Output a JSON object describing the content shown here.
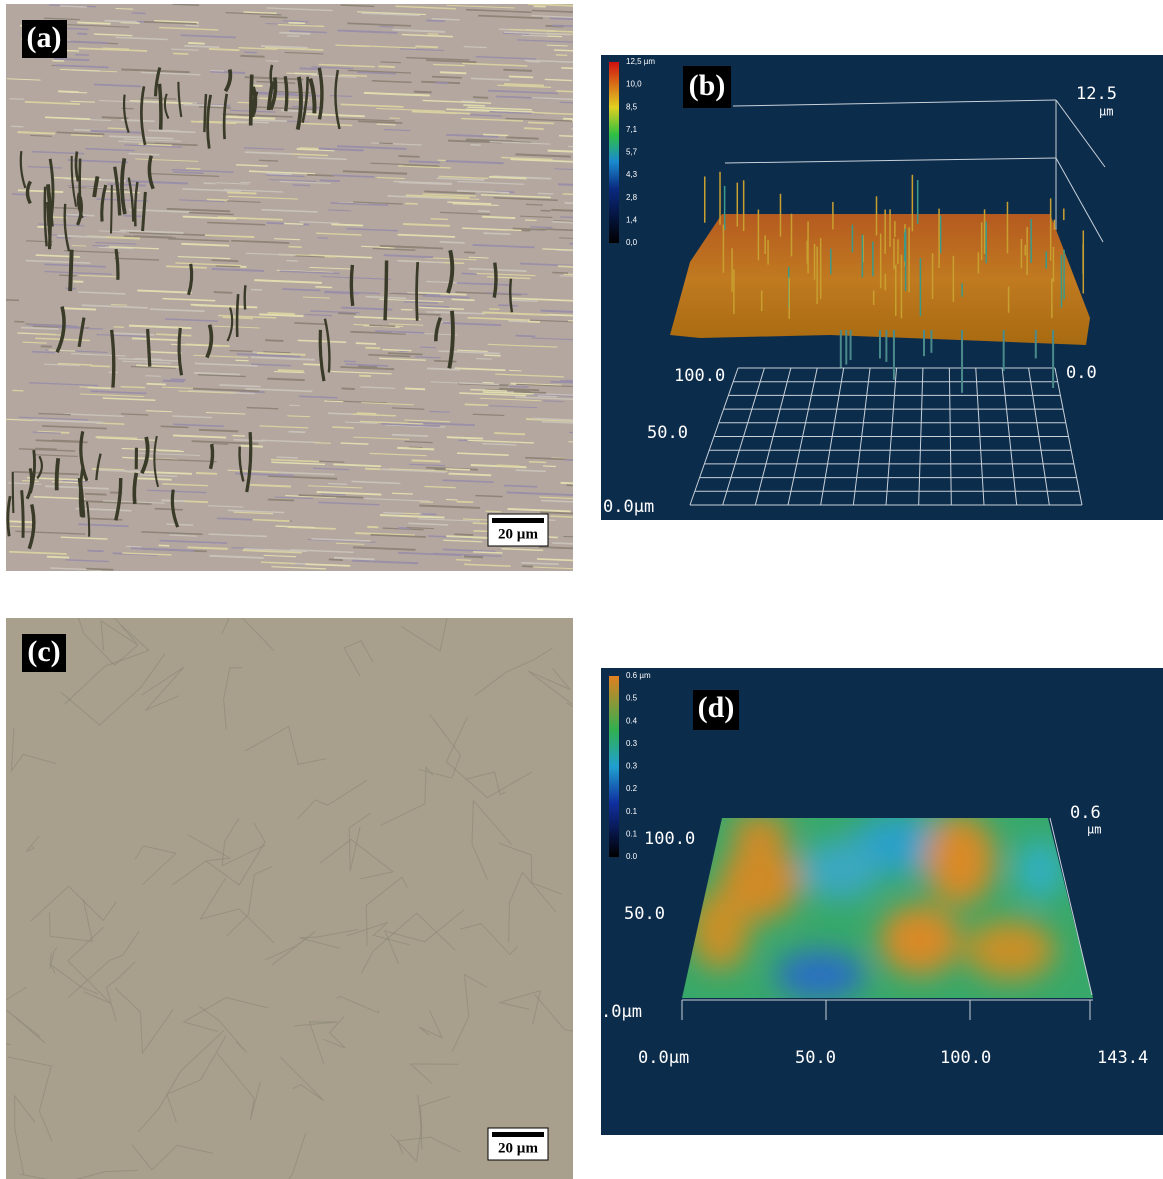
{
  "panels": [
    {
      "label": "(a)",
      "scale_bar": "20 µm"
    },
    {
      "label": "(b)",
      "colorbar": [
        "12,5 µm",
        "10,0",
        "8,5",
        "7,1",
        "5,7",
        "4,3",
        "2,8",
        "1,4",
        "0,0"
      ],
      "z_max": "12.5",
      "z_unit": "µm",
      "y_far": "100.0",
      "x_start": "0.0",
      "y_mid": "50.0",
      "y_origin": "0.0µm"
    },
    {
      "label": "(c)",
      "scale_bar": "20 µm"
    },
    {
      "label": "(d)",
      "colorbar": [
        "0.6 µm",
        "0.5",
        "0.4",
        "0.3",
        "0.3",
        "0.2",
        "0.1",
        "0.1",
        "0.0"
      ],
      "z_max": "0.6",
      "z_unit": "µm",
      "y_far": "100.0",
      "y_mid": "50.0",
      "y_origin": ".0µm",
      "x_ticks": [
        "0.0µm",
        "50.0",
        "100.0",
        "143.4"
      ]
    }
  ]
}
